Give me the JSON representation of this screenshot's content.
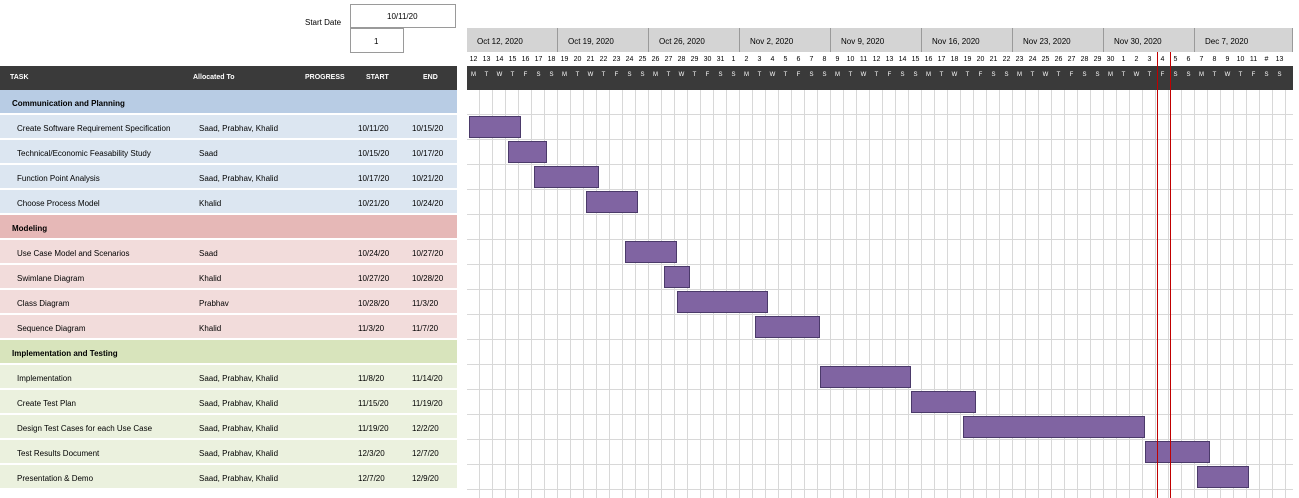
{
  "start_date_label": "Start Date",
  "start_date_value": "10/11/20",
  "week_offset_value": "1",
  "headers": {
    "task": "TASK",
    "allocated": "Allocated To",
    "progress": "PROGRESS",
    "start": "START",
    "end": "END"
  },
  "weeks": [
    "Oct 12, 2020",
    "Oct 19, 2020",
    "Oct 26, 2020",
    "Nov 2, 2020",
    "Nov 9, 2020",
    "Nov 16, 2020",
    "Nov 23, 2020",
    "Nov 30, 2020",
    "Dec 7, 2020"
  ],
  "day_numbers": [
    "12",
    "13",
    "14",
    "15",
    "16",
    "17",
    "18",
    "19",
    "20",
    "21",
    "22",
    "23",
    "24",
    "25",
    "26",
    "27",
    "28",
    "29",
    "30",
    "31",
    "1",
    "2",
    "3",
    "4",
    "5",
    "6",
    "7",
    "8",
    "9",
    "10",
    "11",
    "12",
    "13",
    "14",
    "15",
    "16",
    "17",
    "18",
    "19",
    "20",
    "21",
    "22",
    "23",
    "24",
    "25",
    "26",
    "27",
    "28",
    "29",
    "30",
    "1",
    "2",
    "3",
    "4",
    "5",
    "6",
    "7",
    "8",
    "9",
    "10",
    "11",
    "#",
    "13"
  ],
  "day_letters": [
    "M",
    "T",
    "W",
    "T",
    "F",
    "S",
    "S"
  ],
  "rows": [
    {
      "type": "section",
      "task": "Communication and Planning",
      "color": "#b8cce4"
    },
    {
      "type": "task",
      "task": "Create Software Requirement Specification",
      "allocated": "Saad, Prabhav, Khalid",
      "start": "10/11/20",
      "end": "10/15/20",
      "color": "#dce6f1",
      "bar_start": 0,
      "bar_days": 4
    },
    {
      "type": "task",
      "task": "Technical/Economic Feasability Study",
      "allocated": "Saad",
      "start": "10/15/20",
      "end": "10/17/20",
      "color": "#dce6f1",
      "bar_start": 3,
      "bar_days": 3
    },
    {
      "type": "task",
      "task": "Function Point Analysis",
      "allocated": "Saad, Prabhav, Khalid",
      "start": "10/17/20",
      "end": "10/21/20",
      "color": "#dce6f1",
      "bar_start": 5,
      "bar_days": 5
    },
    {
      "type": "task",
      "task": "Choose Process Model",
      "allocated": "Khalid",
      "start": "10/21/20",
      "end": "10/24/20",
      "color": "#dce6f1",
      "bar_start": 9,
      "bar_days": 4
    },
    {
      "type": "section",
      "task": "Modeling",
      "color": "#e6b8b7"
    },
    {
      "type": "task",
      "task": "Use Case Model and Scenarios",
      "allocated": "Saad",
      "start": "10/24/20",
      "end": "10/27/20",
      "color": "#f2dcdb",
      "bar_start": 12,
      "bar_days": 4
    },
    {
      "type": "task",
      "task": "Swimlane Diagram",
      "allocated": "Khalid",
      "start": "10/27/20",
      "end": "10/28/20",
      "color": "#f2dcdb",
      "bar_start": 15,
      "bar_days": 2
    },
    {
      "type": "task",
      "task": "Class Diagram",
      "allocated": "Prabhav",
      "start": "10/28/20",
      "end": "11/3/20",
      "color": "#f2dcdb",
      "bar_start": 16,
      "bar_days": 7
    },
    {
      "type": "task",
      "task": "Sequence Diagram",
      "allocated": "Khalid",
      "start": "11/3/20",
      "end": "11/7/20",
      "color": "#f2dcdb",
      "bar_start": 22,
      "bar_days": 5
    },
    {
      "type": "section",
      "task": "Implementation and Testing",
      "color": "#d8e4bc"
    },
    {
      "type": "task",
      "task": "Implementation",
      "allocated": "Saad, Prabhav, Khalid",
      "start": "11/8/20",
      "end": "11/14/20",
      "color": "#ebf1de",
      "bar_start": 27,
      "bar_days": 7
    },
    {
      "type": "task",
      "task": "Create Test Plan",
      "allocated": "Saad, Prabhav, Khalid",
      "start": "11/15/20",
      "end": "11/19/20",
      "color": "#ebf1de",
      "bar_start": 34,
      "bar_days": 5
    },
    {
      "type": "task",
      "task": "Design Test Cases for each Use Case",
      "allocated": "Saad, Prabhav, Khalid",
      "start": "11/19/20",
      "end": "12/2/20",
      "color": "#ebf1de",
      "bar_start": 38,
      "bar_days": 14
    },
    {
      "type": "task",
      "task": "Test Results Document",
      "allocated": "Saad, Prabhav, Khalid",
      "start": "12/3/20",
      "end": "12/7/20",
      "color": "#ebf1de",
      "bar_start": 52,
      "bar_days": 5
    },
    {
      "type": "task",
      "task": "Presentation & Demo",
      "allocated": "Saad, Prabhav, Khalid",
      "start": "12/7/20",
      "end": "12/9/20",
      "color": "#ebf1de",
      "bar_start": 56,
      "bar_days": 4
    }
  ],
  "colors": {
    "header_bg": "#3a3a3a",
    "week_bg": "#d4d4d4",
    "bar": "#8064a2",
    "today_line": "#c00000"
  }
}
